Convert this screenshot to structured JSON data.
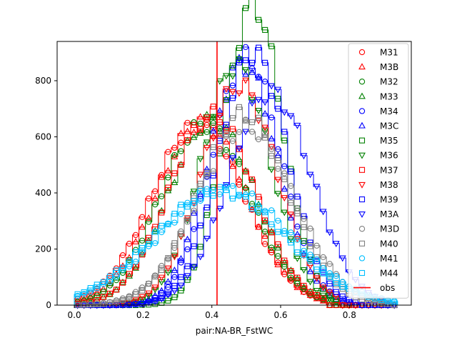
{
  "chart_data": {
    "type": "histogram",
    "xlabel": "pair:NA-BR_FstWC",
    "ylabel": "",
    "xlim": [
      -0.05,
      0.98
    ],
    "ylim": [
      0,
      940
    ],
    "xticks": [
      "0.0",
      "0.2",
      "0.4",
      "0.6",
      "0.8"
    ],
    "yticks": [
      "0",
      "200",
      "400",
      "600",
      "800"
    ],
    "grid": false,
    "legend_position": "top-right",
    "bins": {
      "start": 0.0,
      "end": 0.94,
      "count": 50
    },
    "observed": {
      "name": "obs",
      "x": 0.415,
      "color": "#ff0000"
    },
    "series": [
      {
        "name": "M31",
        "color": "#ff0000",
        "marker": "circle",
        "mean": 0.36,
        "sd": 0.135,
        "n": 11600,
        "tail": 0.73
      },
      {
        "name": "M3B",
        "color": "#ff0000",
        "marker": "triangle-up",
        "mean": 0.37,
        "sd": 0.13,
        "n": 11300,
        "tail": 0.73
      },
      {
        "name": "M32",
        "color": "#008000",
        "marker": "circle",
        "mean": 0.38,
        "sd": 0.13,
        "n": 11200,
        "tail": 0.74
      },
      {
        "name": "M33",
        "color": "#008000",
        "marker": "triangle-up",
        "mean": 0.4,
        "sd": 0.125,
        "n": 11000,
        "tail": 0.75
      },
      {
        "name": "M34",
        "color": "#0000ff",
        "marker": "circle",
        "mean": 0.5,
        "sd": 0.1,
        "n": 11800,
        "tail": 0.8
      },
      {
        "name": "M3C",
        "color": "#0000ff",
        "marker": "triangle-up",
        "mean": 0.49,
        "sd": 0.1,
        "n": 11500,
        "tail": 0.8
      },
      {
        "name": "M35",
        "color": "#008000",
        "marker": "square",
        "mean": 0.52,
        "sd": 0.085,
        "n": 12200,
        "tail": 0.78
      },
      {
        "name": "M36",
        "color": "#008000",
        "marker": "triangle-down",
        "mean": 0.47,
        "sd": 0.1,
        "n": 11400,
        "tail": 0.78
      },
      {
        "name": "M37",
        "color": "#ff0000",
        "marker": "square",
        "mean": 0.4,
        "sd": 0.125,
        "n": 11300,
        "tail": 0.74
      },
      {
        "name": "M38",
        "color": "#ff0000",
        "marker": "triangle-down",
        "mean": 0.48,
        "sd": 0.11,
        "n": 11500,
        "tail": 0.78
      },
      {
        "name": "M39",
        "color": "#0000ff",
        "marker": "square",
        "mean": 0.52,
        "sd": 0.1,
        "n": 12000,
        "tail": 0.82
      },
      {
        "name": "M3A",
        "color": "#0000ff",
        "marker": "triangle-down",
        "mean": 0.57,
        "sd": 0.12,
        "n": 12200,
        "tail": 0.9
      },
      {
        "name": "M3D",
        "color": "#808080",
        "marker": "circle",
        "mean": 0.5,
        "sd": 0.14,
        "n": 11800,
        "tail": 0.92
      },
      {
        "name": "M40",
        "color": "#808080",
        "marker": "square",
        "mean": 0.49,
        "sd": 0.13,
        "n": 11800,
        "tail": 0.92
      },
      {
        "name": "M41",
        "color": "#00bfff",
        "marker": "circle",
        "mean": 0.44,
        "sd": 0.19,
        "n": 10500,
        "tail": 0.94
      },
      {
        "name": "M44",
        "color": "#00bfff",
        "marker": "square",
        "mean": 0.42,
        "sd": 0.19,
        "n": 10300,
        "tail": 0.94
      }
    ]
  }
}
